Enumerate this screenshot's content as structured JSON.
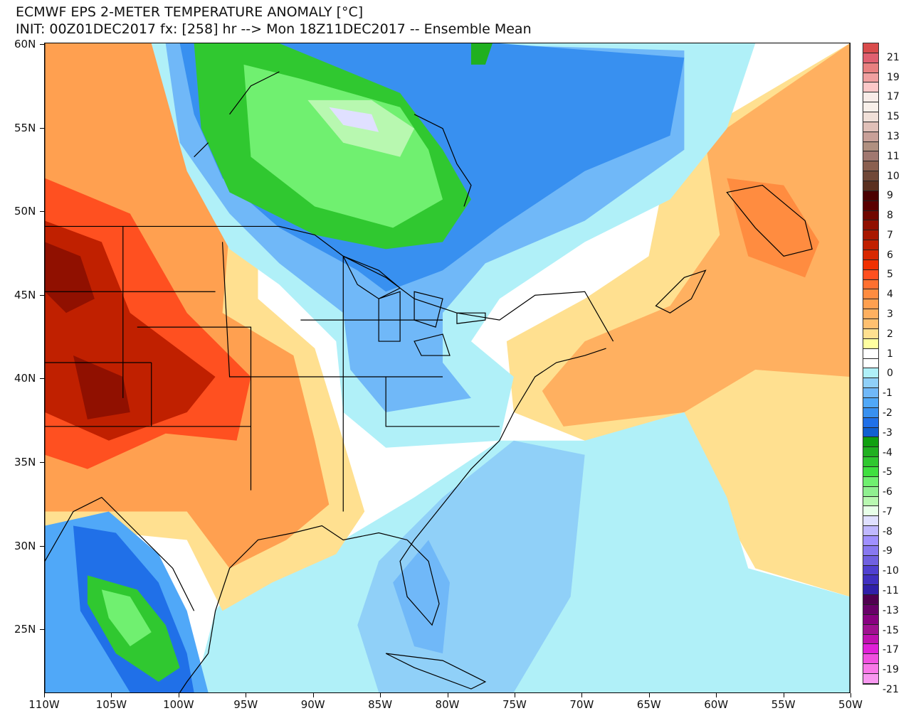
{
  "title": {
    "line1": "ECMWF EPS 2-METER TEMPERATURE ANOMALY [°C]",
    "line2": "INIT: 00Z01DEC2017 fx: [258] hr --> Mon 18Z11DEC2017 -- Ensemble Mean"
  },
  "x_axis": [
    "110W",
    "105W",
    "100W",
    "95W",
    "90W",
    "85W",
    "80W",
    "75W",
    "70W",
    "65W",
    "60W",
    "55W",
    "50W"
  ],
  "y_axis": [
    "60N",
    "55N",
    "50N",
    "45N",
    "40N",
    "35N",
    "30N",
    "25N"
  ],
  "colorbar": {
    "labels": [
      "21",
      "19",
      "17",
      "15",
      "13",
      "11",
      "10",
      "9",
      "8",
      "7",
      "6",
      "5",
      "4",
      "3",
      "2",
      "1",
      "0",
      "-1",
      "-2",
      "-3",
      "-4",
      "-5",
      "-6",
      "-7",
      "-8",
      "-9",
      "-10",
      "-11",
      "-13",
      "-15",
      "-17",
      "-19",
      "-21"
    ],
    "colors": [
      "#d94c4c",
      "#e06070",
      "#e88080",
      "#f0a0a0",
      "#fcc8c8",
      "#f8ece8",
      "#f8f0ea",
      "#f0e0d8",
      "#e0c0b8",
      "#c8a098",
      "#b09080",
      "#a07870",
      "#8a6050",
      "#704838",
      "#5a3020",
      "#4a0000",
      "#5a0000",
      "#700800",
      "#901000",
      "#a81800",
      "#c02000",
      "#d82800",
      "#f03000",
      "#ff5020",
      "#ff7030",
      "#ff8c40",
      "#ffa050",
      "#ffb060",
      "#ffc070",
      "#ffe090",
      "#ffffa0",
      "#ffffff",
      "#ffffff",
      "#b0f0f8",
      "#90d0f8",
      "#70b8f8",
      "#50a8f8",
      "#3890f0",
      "#2070e8",
      "#1060d0",
      "#10a010",
      "#20b020",
      "#30c830",
      "#40e040",
      "#70f070",
      "#90f090",
      "#b8f8b0",
      "#e8ffe8",
      "#e0e0ff",
      "#c0b8ff",
      "#a090ff",
      "#8878f0",
      "#7060e0",
      "#5040d0",
      "#4030c0",
      "#3020a8",
      "#500050",
      "#680068",
      "#880080",
      "#a01090",
      "#c010b0",
      "#e020d8",
      "#f050e0",
      "#f878e8",
      "#f898f0"
    ]
  }
}
